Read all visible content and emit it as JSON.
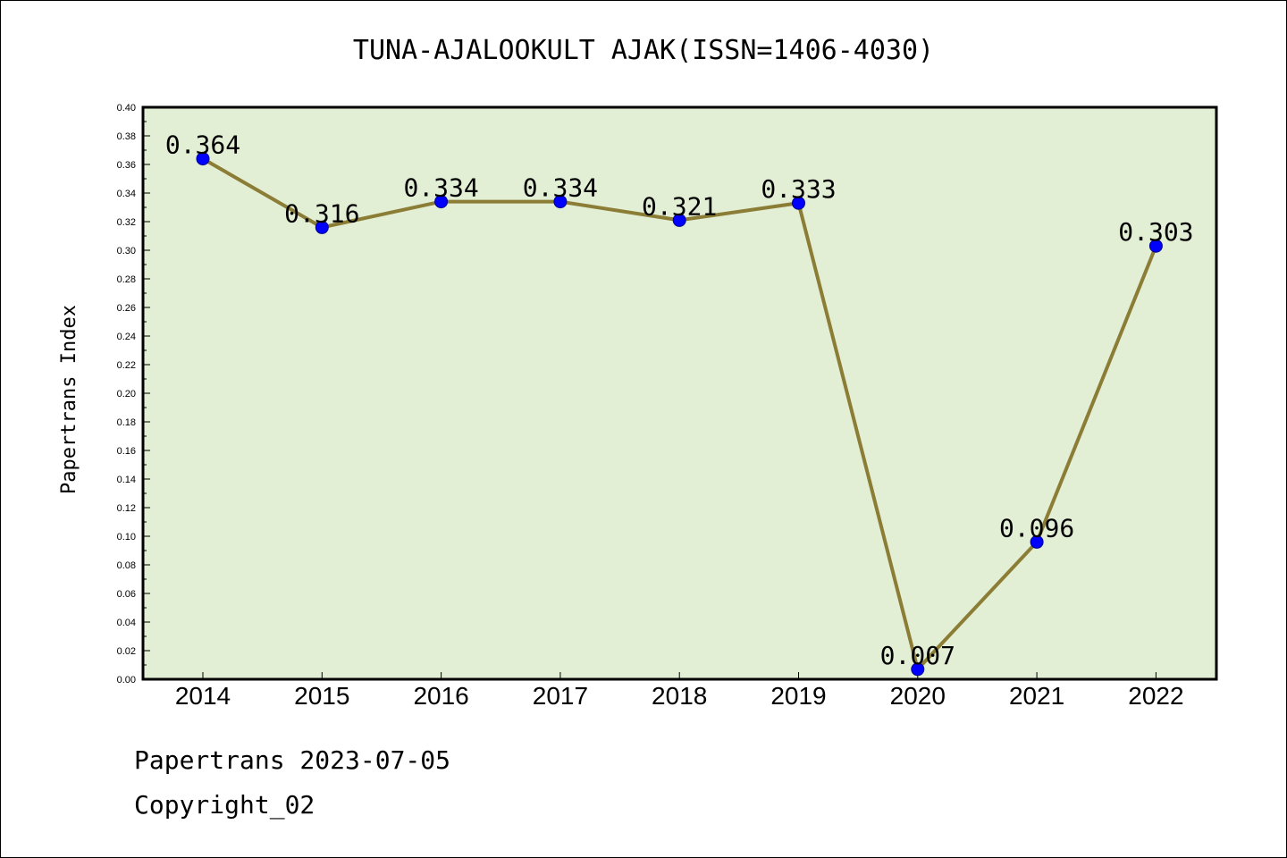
{
  "chart_data": {
    "type": "line",
    "title": "TUNA-AJALOOKULT AJAK(ISSN=1406-4030)",
    "xlabel": "",
    "ylabel": "Papertrans Index",
    "categories": [
      "2014",
      "2015",
      "2016",
      "2017",
      "2018",
      "2019",
      "2020",
      "2021",
      "2022"
    ],
    "values": [
      0.364,
      0.316,
      0.334,
      0.334,
      0.321,
      0.333,
      0.007,
      0.096,
      0.303
    ],
    "value_labels": [
      "0.364",
      "0.316",
      "0.334",
      "0.334",
      "0.321",
      "0.333",
      "0.007",
      "0.096",
      "0.303"
    ],
    "ylim": [
      0,
      0.4
    ],
    "ytick_step": 0.02,
    "grid": false,
    "legend": "none",
    "colors": {
      "plot_background": "#e2efd4",
      "line": "#8b7d35",
      "marker": "#0000ff"
    }
  },
  "footer": {
    "line1": "Papertrans 2023-07-05",
    "line2": "Copyright_02"
  }
}
